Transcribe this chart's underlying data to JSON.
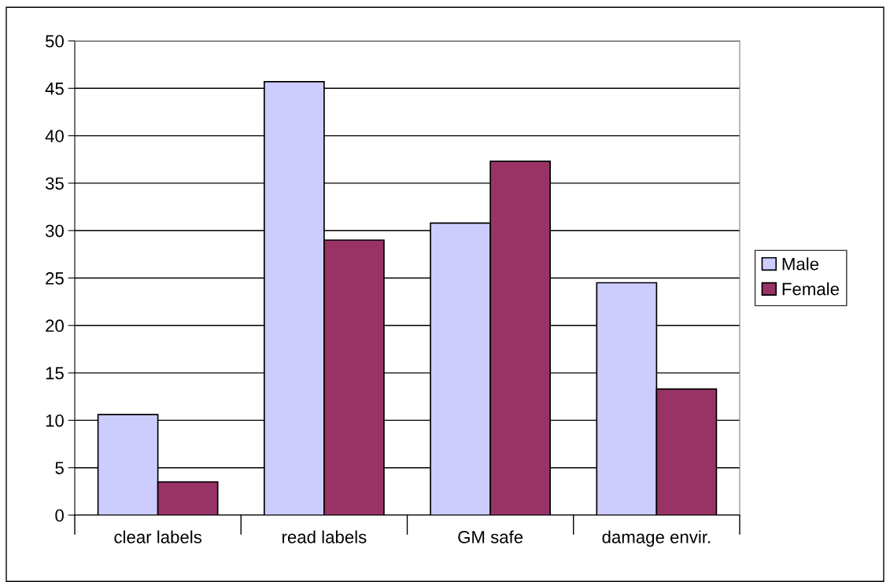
{
  "chart_data": {
    "type": "bar",
    "categories": [
      "clear labels",
      "read labels",
      "GM safe",
      "damage envir."
    ],
    "series": [
      {
        "name": "Male",
        "color": "#ccccff",
        "values": [
          10.6,
          45.7,
          30.8,
          24.5
        ]
      },
      {
        "name": "Female",
        "color": "#993366",
        "values": [
          3.5,
          29.0,
          37.3,
          13.3
        ]
      }
    ],
    "ylim": [
      0,
      50
    ],
    "yticks": [
      0,
      5,
      10,
      15,
      20,
      25,
      30,
      35,
      40,
      45,
      50
    ],
    "grid": "y",
    "legend": "right"
  }
}
